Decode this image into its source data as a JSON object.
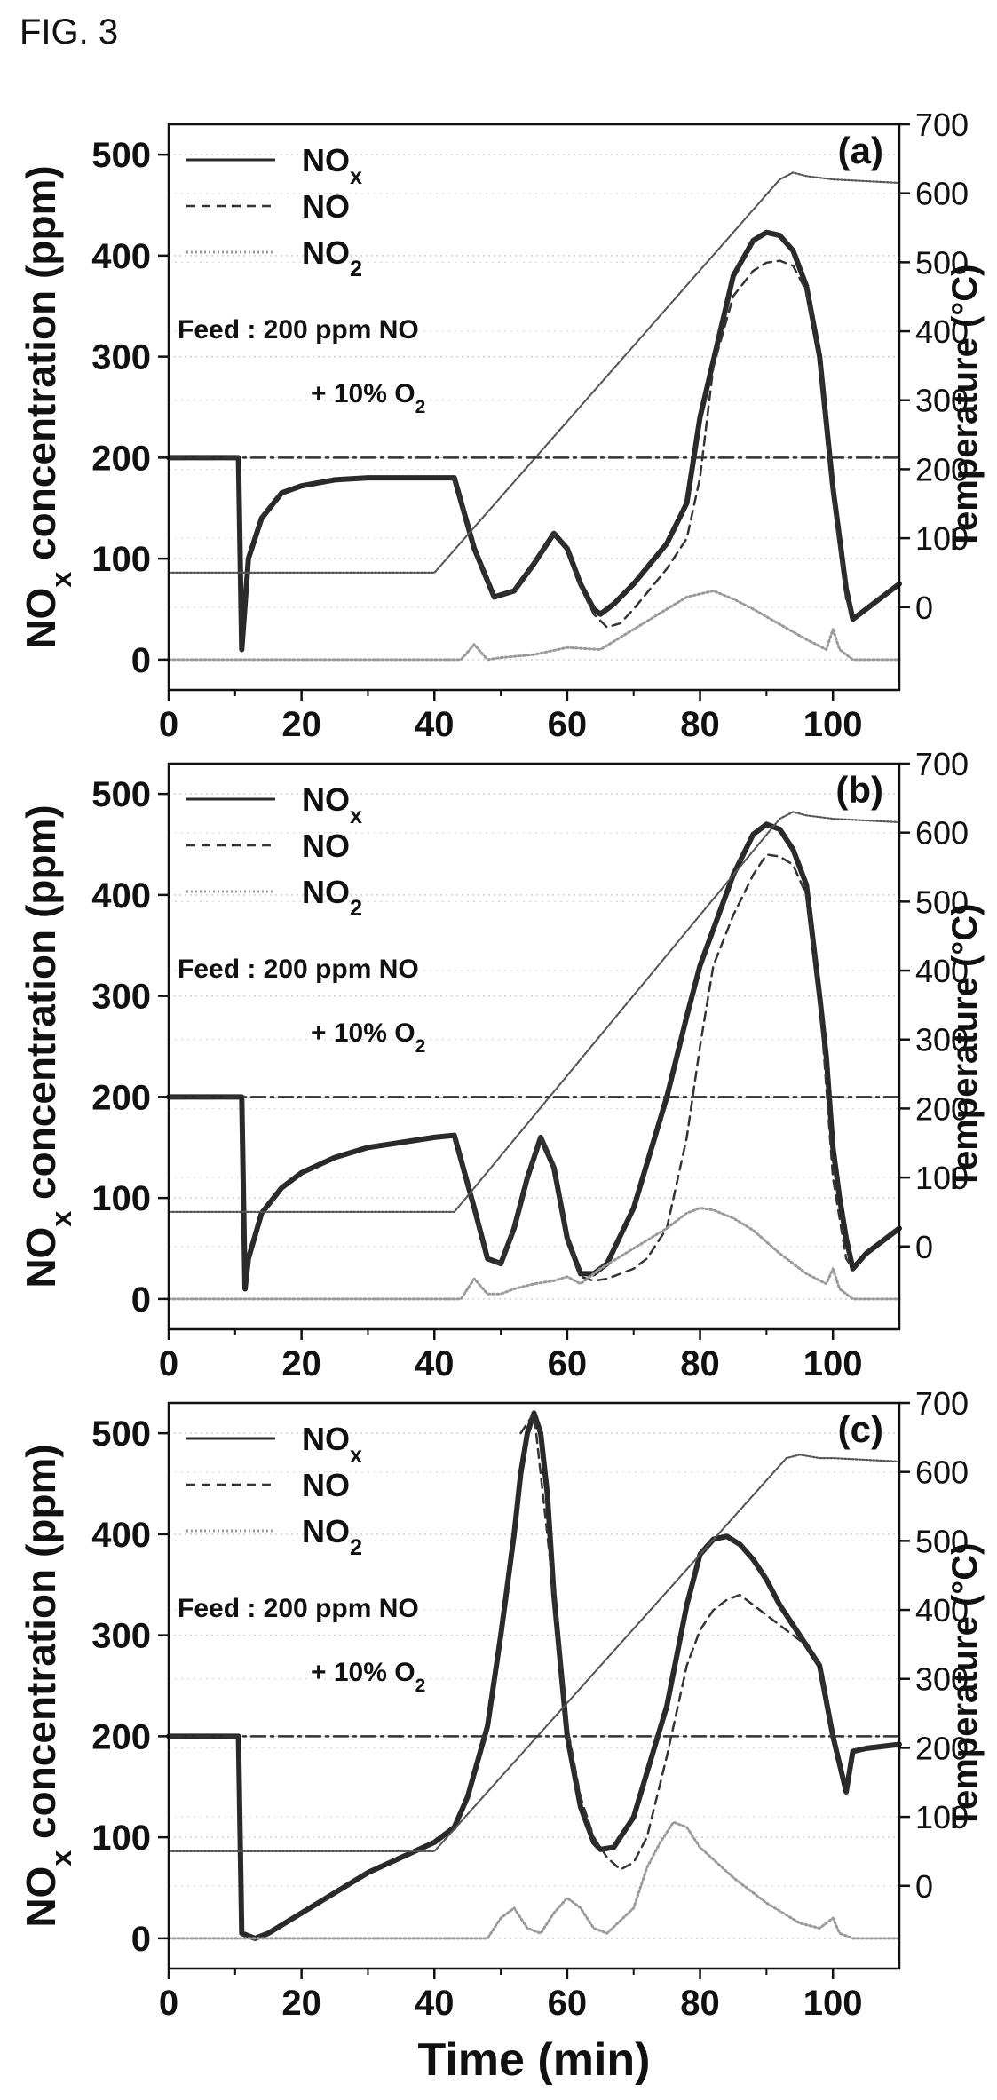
{
  "figure_label": "FIG. 3",
  "chart_data": [
    {
      "type": "line",
      "panel_label": "(a)",
      "annotation": [
        "Feed : 200 ppm NO",
        "+ 10% O2"
      ],
      "xlabel": "",
      "ylabel": "NOx concentration (ppm)",
      "y2label": "Temperature (°C)",
      "xlim": [
        0,
        110
      ],
      "ylim": [
        -30,
        530
      ],
      "y2lim": [
        -120,
        700
      ],
      "x_ticks": [
        0,
        20,
        40,
        60,
        80,
        100
      ],
      "y_ticks": [
        0,
        100,
        200,
        300,
        400,
        500
      ],
      "y2_ticks": [
        0,
        100,
        200,
        300,
        400,
        500,
        600,
        700
      ],
      "grid": true,
      "legend": "top-left",
      "series": [
        {
          "name": "NOx",
          "axis": "left",
          "style": "solid-thick",
          "x": [
            0,
            10.5,
            11,
            12,
            14,
            17,
            20,
            25,
            30,
            35,
            40,
            43,
            46,
            49,
            52,
            55,
            58,
            60,
            62,
            64,
            65,
            67,
            70,
            75,
            78,
            80,
            85,
            88,
            90,
            92,
            94,
            96,
            98,
            100,
            101,
            102,
            103,
            105,
            110
          ],
          "y": [
            200,
            200,
            10,
            100,
            140,
            165,
            172,
            178,
            180,
            180,
            180,
            180,
            110,
            62,
            68,
            95,
            125,
            110,
            75,
            50,
            45,
            55,
            75,
            115,
            155,
            240,
            380,
            415,
            423,
            420,
            405,
            370,
            300,
            170,
            120,
            70,
            40,
            50,
            75
          ]
        },
        {
          "name": "NO",
          "axis": "left",
          "style": "dash",
          "x": [
            43,
            46,
            49,
            52,
            55,
            58,
            60,
            62,
            64,
            66,
            68,
            70,
            75,
            78,
            80,
            82,
            85,
            88,
            90,
            92,
            94,
            96,
            98,
            100,
            102,
            103
          ],
          "y": [
            180,
            110,
            62,
            68,
            95,
            125,
            110,
            72,
            45,
            32,
            36,
            50,
            90,
            120,
            180,
            290,
            360,
            385,
            393,
            395,
            390,
            365,
            300,
            160,
            60,
            40
          ]
        },
        {
          "name": "NO2",
          "axis": "left",
          "style": "gray-dot",
          "x": [
            0,
            40,
            44,
            46,
            48,
            50,
            55,
            60,
            65,
            70,
            75,
            78,
            80,
            82,
            85,
            88,
            92,
            96,
            99,
            100,
            101,
            103,
            110
          ],
          "y": [
            0,
            0,
            0,
            15,
            0,
            2,
            5,
            12,
            10,
            30,
            50,
            62,
            65,
            68,
            60,
            50,
            35,
            20,
            10,
            30,
            10,
            0,
            0
          ]
        },
        {
          "name": "",
          "axis": "right",
          "style": "dot",
          "x": [
            0,
            40,
            92,
            94,
            96,
            100,
            110
          ],
          "y": [
            50,
            50,
            620,
            630,
            625,
            620,
            615
          ]
        },
        {
          "name": "",
          "axis": "left",
          "style": "dashdot",
          "x": [
            0,
            110
          ],
          "y": [
            200,
            200
          ]
        }
      ]
    },
    {
      "type": "line",
      "panel_label": "(b)",
      "annotation": [
        "Feed : 200 ppm NO",
        "+ 10% O2"
      ],
      "xlabel": "",
      "ylabel": "NOx concentration (ppm)",
      "y2label": "Temperature (°C)",
      "xlim": [
        0,
        110
      ],
      "ylim": [
        -30,
        530
      ],
      "y2lim": [
        -120,
        700
      ],
      "x_ticks": [
        0,
        20,
        40,
        60,
        80,
        100
      ],
      "y_ticks": [
        0,
        100,
        200,
        300,
        400,
        500
      ],
      "y2_ticks": [
        0,
        100,
        200,
        300,
        400,
        500,
        600,
        700
      ],
      "grid": true,
      "legend": "top-left",
      "series": [
        {
          "name": "NOx",
          "axis": "left",
          "style": "solid-thick",
          "x": [
            0,
            11,
            11.5,
            12,
            14,
            17,
            20,
            25,
            30,
            35,
            40,
            43,
            46,
            48,
            50,
            52,
            54,
            56,
            58,
            60,
            62,
            64,
            66,
            70,
            75,
            78,
            80,
            85,
            88,
            90,
            92,
            94,
            96,
            98,
            99,
            100,
            101,
            102,
            103,
            105,
            110
          ],
          "y": [
            200,
            200,
            10,
            40,
            85,
            110,
            125,
            140,
            150,
            155,
            160,
            162,
            90,
            40,
            35,
            70,
            120,
            160,
            130,
            60,
            25,
            25,
            35,
            90,
            200,
            280,
            330,
            420,
            460,
            470,
            465,
            445,
            410,
            300,
            240,
            150,
            100,
            60,
            30,
            45,
            70
          ]
        },
        {
          "name": "NO",
          "axis": "left",
          "style": "dash",
          "x": [
            43,
            46,
            48,
            50,
            52,
            54,
            56,
            58,
            60,
            62,
            64,
            66,
            70,
            72,
            75,
            78,
            80,
            82,
            85,
            88,
            90,
            92,
            94,
            96,
            98,
            100,
            102,
            103
          ],
          "y": [
            162,
            90,
            40,
            35,
            70,
            120,
            160,
            130,
            60,
            22,
            18,
            20,
            30,
            40,
            70,
            160,
            250,
            330,
            380,
            420,
            440,
            438,
            430,
            400,
            300,
            120,
            40,
            30
          ]
        },
        {
          "name": "NO2",
          "axis": "left",
          "style": "gray-dot",
          "x": [
            0,
            42,
            44,
            46,
            48,
            50,
            52,
            55,
            58,
            60,
            62,
            65,
            70,
            75,
            78,
            80,
            82,
            85,
            88,
            92,
            96,
            99,
            100,
            101,
            103,
            110
          ],
          "y": [
            0,
            0,
            0,
            20,
            5,
            5,
            10,
            15,
            18,
            22,
            15,
            30,
            50,
            70,
            85,
            90,
            88,
            80,
            68,
            45,
            25,
            15,
            30,
            10,
            0,
            0
          ]
        },
        {
          "name": "",
          "axis": "right",
          "style": "dot",
          "x": [
            0,
            43,
            92,
            94,
            96,
            100,
            110
          ],
          "y": [
            50,
            50,
            620,
            630,
            625,
            620,
            615
          ]
        },
        {
          "name": "",
          "axis": "left",
          "style": "dashdot",
          "x": [
            0,
            110
          ],
          "y": [
            200,
            200
          ]
        }
      ]
    },
    {
      "type": "line",
      "panel_label": "(c)",
      "annotation": [
        "Feed : 200 ppm NO",
        "+ 10% O2"
      ],
      "xlabel": "Time (min)",
      "ylabel": "NOx concentration (ppm)",
      "y2label": "Temperature (°C)",
      "xlim": [
        0,
        110
      ],
      "ylim": [
        -30,
        530
      ],
      "y2lim": [
        -120,
        700
      ],
      "x_ticks": [
        0,
        20,
        40,
        60,
        80,
        100
      ],
      "y_ticks": [
        0,
        100,
        200,
        300,
        400,
        500
      ],
      "y2_ticks": [
        0,
        100,
        200,
        300,
        400,
        500,
        600,
        700
      ],
      "grid": true,
      "legend": "top-left",
      "series": [
        {
          "name": "NOx",
          "axis": "left",
          "style": "solid-thick",
          "x": [
            0,
            10.5,
            11,
            13,
            15,
            20,
            25,
            30,
            35,
            40,
            43,
            45,
            48,
            50,
            52,
            53,
            54,
            55,
            56,
            57,
            58,
            60,
            62,
            64,
            65,
            67,
            70,
            75,
            78,
            80,
            82,
            84,
            86,
            88,
            90,
            92,
            94,
            96,
            98,
            100,
            102,
            103,
            105,
            110
          ],
          "y": [
            200,
            200,
            5,
            0,
            5,
            25,
            45,
            65,
            80,
            95,
            110,
            140,
            210,
            300,
            400,
            460,
            500,
            520,
            500,
            440,
            340,
            200,
            130,
            95,
            88,
            90,
            120,
            230,
            330,
            380,
            395,
            398,
            390,
            375,
            355,
            330,
            310,
            290,
            270,
            200,
            145,
            185,
            188,
            192
          ]
        },
        {
          "name": "NO",
          "axis": "left",
          "style": "dash",
          "x": [
            53,
            55,
            58,
            60,
            62,
            64,
            66,
            68,
            70,
            72,
            75,
            78,
            80,
            82,
            84,
            86,
            88,
            90,
            92,
            94,
            96,
            98,
            100
          ],
          "y": [
            500,
            520,
            340,
            210,
            140,
            100,
            80,
            68,
            75,
            100,
            180,
            270,
            305,
            325,
            335,
            340,
            330,
            320,
            310,
            300,
            290,
            270,
            200
          ]
        },
        {
          "name": "NO2",
          "axis": "left",
          "style": "gray-dot",
          "x": [
            0,
            48,
            50,
            52,
            54,
            56,
            58,
            60,
            62,
            64,
            66,
            70,
            72,
            74,
            76,
            78,
            80,
            85,
            90,
            95,
            98,
            100,
            101,
            103,
            110
          ],
          "y": [
            0,
            0,
            20,
            30,
            10,
            5,
            25,
            40,
            30,
            10,
            5,
            30,
            70,
            95,
            115,
            110,
            90,
            60,
            35,
            15,
            10,
            20,
            5,
            0,
            0
          ]
        },
        {
          "name": "",
          "axis": "right",
          "style": "dot",
          "x": [
            0,
            40,
            93,
            95,
            98,
            100,
            110
          ],
          "y": [
            50,
            50,
            620,
            625,
            620,
            620,
            615
          ]
        },
        {
          "name": "",
          "axis": "left",
          "style": "dashdot",
          "x": [
            0,
            110
          ],
          "y": [
            200,
            200
          ]
        }
      ]
    }
  ]
}
